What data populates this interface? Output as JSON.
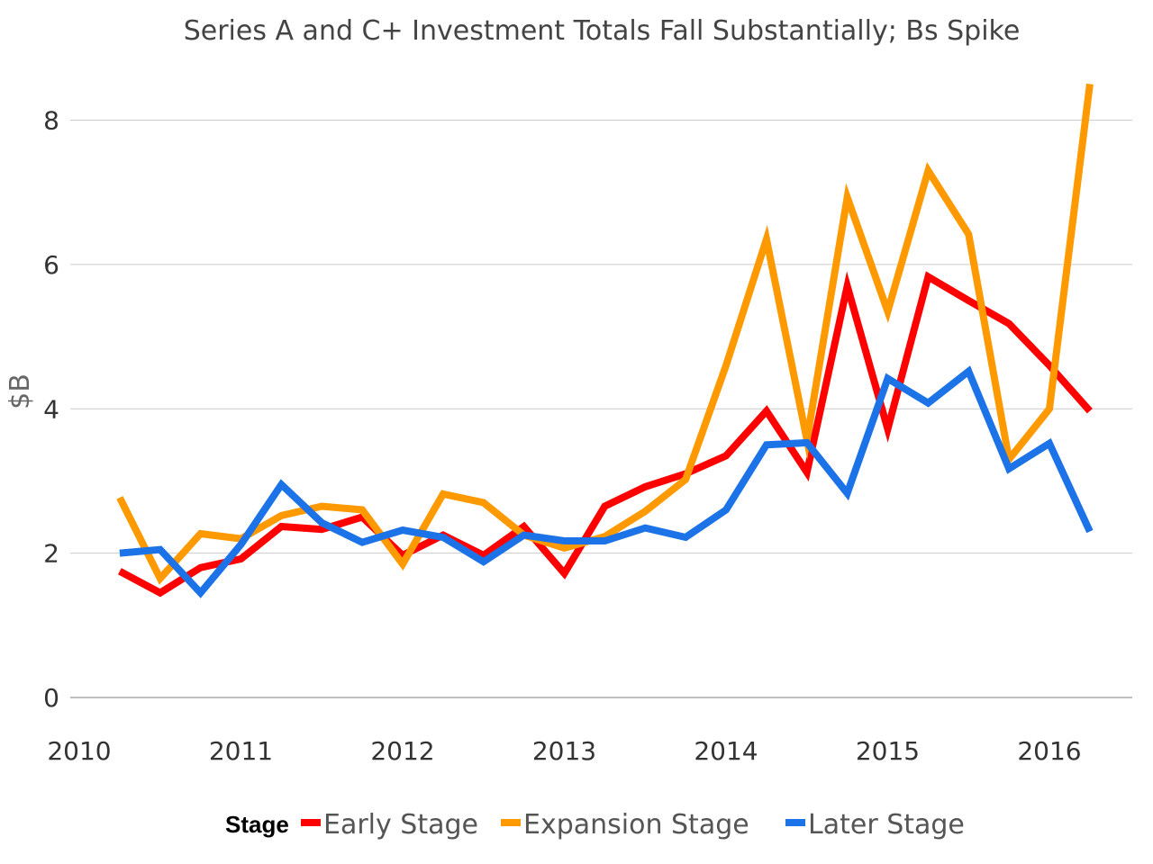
{
  "chart_data": {
    "type": "line",
    "title": "Series A and C+ Investment Totals Fall Substantially; Bs Spike",
    "xlabel": "",
    "ylabel": "$B",
    "xlim": [
      2010,
      2016.5
    ],
    "ylim": [
      0,
      8.5
    ],
    "x_ticks": [
      {
        "value": 2010,
        "label": "2010"
      },
      {
        "value": 2011,
        "label": "2011"
      },
      {
        "value": 2012,
        "label": "2012"
      },
      {
        "value": 2013,
        "label": "2013"
      },
      {
        "value": 2014,
        "label": "2014"
      },
      {
        "value": 2015,
        "label": "2015"
      },
      {
        "value": 2016,
        "label": "2016"
      }
    ],
    "y_ticks": [
      {
        "value": 0,
        "label": "0"
      },
      {
        "value": 2,
        "label": "2"
      },
      {
        "value": 4,
        "label": "4"
      },
      {
        "value": 6,
        "label": "6"
      },
      {
        "value": 8,
        "label": "8"
      }
    ],
    "grid": true,
    "legend": {
      "title": "Stage",
      "position": "bottom"
    },
    "x": [
      2010.25,
      2010.5,
      2010.75,
      2011.0,
      2011.25,
      2011.5,
      2011.75,
      2012.0,
      2012.25,
      2012.5,
      2012.75,
      2013.0,
      2013.25,
      2013.5,
      2013.75,
      2014.0,
      2014.25,
      2014.5,
      2014.75,
      2015.0,
      2015.25,
      2015.5,
      2015.75,
      2016.0,
      2016.25
    ],
    "series": [
      {
        "name": "Early Stage",
        "color": "#ff0000",
        "values": [
          1.75,
          1.45,
          1.8,
          1.92,
          2.37,
          2.33,
          2.5,
          1.97,
          2.25,
          1.97,
          2.37,
          1.72,
          2.65,
          2.92,
          3.1,
          3.35,
          3.97,
          3.12,
          5.7,
          3.72,
          5.83,
          5.5,
          5.18,
          4.6,
          3.97
        ]
      },
      {
        "name": "Expansion Stage",
        "color": "#ff9900",
        "values": [
          2.77,
          1.65,
          2.27,
          2.2,
          2.52,
          2.65,
          2.6,
          1.85,
          2.82,
          2.7,
          2.25,
          2.07,
          2.23,
          2.58,
          3.02,
          4.6,
          6.35,
          3.57,
          6.93,
          5.35,
          7.3,
          6.42,
          3.3,
          4.0,
          8.5
        ]
      },
      {
        "name": "Later Stage",
        "color": "#1c73e8",
        "values": [
          2.0,
          2.05,
          1.45,
          2.12,
          2.95,
          2.42,
          2.15,
          2.32,
          2.22,
          1.88,
          2.25,
          2.17,
          2.17,
          2.35,
          2.22,
          2.6,
          3.5,
          3.53,
          2.83,
          4.42,
          4.08,
          4.52,
          3.17,
          3.52,
          2.3
        ]
      }
    ]
  }
}
